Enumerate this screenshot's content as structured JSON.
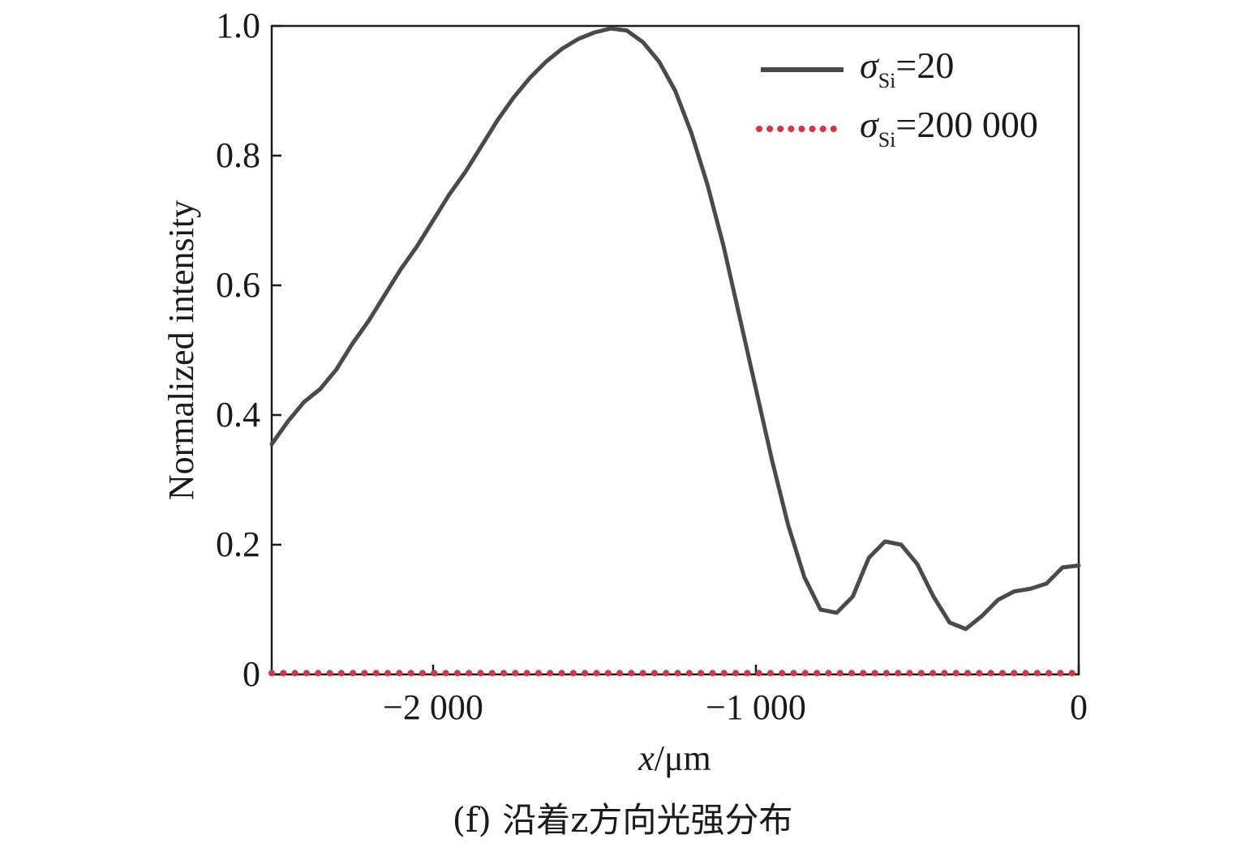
{
  "chart_data": {
    "type": "line",
    "xlabel_var": "x",
    "xlabel_unit": "/μm",
    "ylabel": "Normalized intensity",
    "xlim": [
      -2500,
      0
    ],
    "ylim": [
      0,
      1.0
    ],
    "x_ticks": [
      {
        "value": -2000,
        "label": "−2 000"
      },
      {
        "value": -1000,
        "label": "−1 000"
      },
      {
        "value": 0,
        "label": "0"
      }
    ],
    "y_ticks": [
      {
        "value": 0,
        "label": "0"
      },
      {
        "value": 0.2,
        "label": "0.2"
      },
      {
        "value": 0.4,
        "label": "0.4"
      },
      {
        "value": 0.6,
        "label": "0.6"
      },
      {
        "value": 0.8,
        "label": "0.8"
      },
      {
        "value": 1.0,
        "label": "1.0"
      }
    ],
    "legend_position": "top-right",
    "grid": false,
    "series": [
      {
        "legend_symbol": "σ",
        "legend_sub": "Si",
        "legend_value": "=20",
        "style": "solid",
        "color": "#4a4a4e",
        "x": [
          -2500,
          -2450,
          -2400,
          -2350,
          -2300,
          -2250,
          -2200,
          -2150,
          -2100,
          -2050,
          -2000,
          -1950,
          -1900,
          -1850,
          -1800,
          -1750,
          -1700,
          -1650,
          -1600,
          -1550,
          -1500,
          -1450,
          -1400,
          -1350,
          -1300,
          -1250,
          -1200,
          -1150,
          -1100,
          -1050,
          -1000,
          -950,
          -900,
          -850,
          -800,
          -750,
          -700,
          -675,
          -650,
          -600,
          -550,
          -500,
          -450,
          -400,
          -350,
          -300,
          -250,
          -200,
          -150,
          -100,
          -50,
          0
        ],
        "y": [
          0.355,
          0.39,
          0.42,
          0.44,
          0.47,
          0.51,
          0.545,
          0.585,
          0.625,
          0.66,
          0.7,
          0.74,
          0.775,
          0.815,
          0.855,
          0.89,
          0.92,
          0.945,
          0.965,
          0.98,
          0.99,
          0.996,
          0.993,
          0.975,
          0.945,
          0.9,
          0.835,
          0.755,
          0.66,
          0.55,
          0.44,
          0.33,
          0.23,
          0.15,
          0.1,
          0.095,
          0.12,
          0.15,
          0.18,
          0.205,
          0.2,
          0.17,
          0.12,
          0.08,
          0.07,
          0.09,
          0.115,
          0.128,
          0.132,
          0.14,
          0.165,
          0.168
        ]
      },
      {
        "legend_symbol": "σ",
        "legend_sub": "Si",
        "legend_value": "=200 000",
        "style": "dotted",
        "color": "#d0384a",
        "x": [
          -2500,
          -2000,
          -1500,
          -1000,
          -500,
          0
        ],
        "y": [
          0.002,
          0.002,
          0.002,
          0.002,
          0.002,
          0.002
        ]
      }
    ]
  },
  "caption": "(f) 沿着z方向光强分布"
}
